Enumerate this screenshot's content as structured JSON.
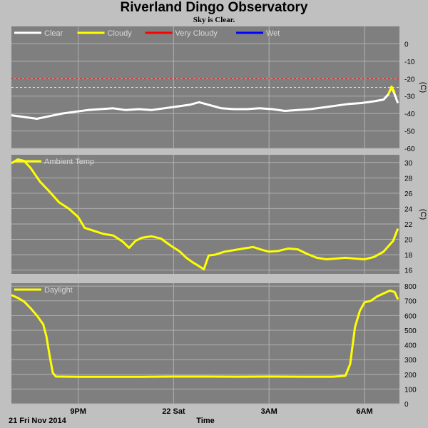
{
  "header": {
    "title": "Riverland Dingo Observatory",
    "subtitle": "Sky is Clear."
  },
  "footer": {
    "date_label": "21 Fri Nov 2014",
    "xlabel": "Time"
  },
  "x_ticks": [
    {
      "label": "9PM",
      "t": 21
    },
    {
      "label": "22 Sat",
      "t": 24
    },
    {
      "label": "3AM",
      "t": 27
    },
    {
      "label": "6AM",
      "t": 30
    }
  ],
  "colors": {
    "plot_bg": "#7f7f7f",
    "page_bg": "#c0c0c0",
    "grid": "#b0b0b0",
    "clear": "#ffffff",
    "cloudy": "#ffff00",
    "very_cloudy": "#ff0000",
    "wet": "#0000ff"
  },
  "chart_data": [
    {
      "type": "line",
      "panel": "sky",
      "unit": "(C)",
      "ylim": [
        -60,
        10
      ],
      "yticks": [
        0,
        -10,
        -20,
        -30,
        -40,
        -50,
        -60
      ],
      "thresholds": [
        {
          "name": "Very Cloudy",
          "value": -20,
          "color": "#ff0000"
        },
        {
          "name": "Cloudy",
          "value": -25,
          "color": "#ffff00"
        }
      ],
      "legend": [
        {
          "label": "Clear",
          "color": "#ffffff"
        },
        {
          "label": "Cloudy",
          "color": "#ffff00"
        },
        {
          "label": "Very Cloudy",
          "color": "#ff0000"
        },
        {
          "label": "Wet",
          "color": "#0000ff"
        }
      ],
      "series": [
        {
          "color": "#ffffff",
          "points": [
            [
              18.9,
              -41
            ],
            [
              19.3,
              -42
            ],
            [
              19.7,
              -43
            ],
            [
              20.1,
              -41.5
            ],
            [
              20.5,
              -40
            ],
            [
              20.9,
              -39
            ],
            [
              21.3,
              -38
            ],
            [
              21.7,
              -37.5
            ],
            [
              22.1,
              -37
            ],
            [
              22.5,
              -38
            ],
            [
              22.9,
              -37.5
            ],
            [
              23.3,
              -38
            ],
            [
              23.7,
              -37
            ],
            [
              24.1,
              -36
            ],
            [
              24.5,
              -35
            ],
            [
              24.8,
              -33.5
            ],
            [
              25.1,
              -35
            ],
            [
              25.5,
              -37
            ],
            [
              25.9,
              -37.5
            ],
            [
              26.3,
              -37.5
            ],
            [
              26.7,
              -37
            ],
            [
              27.1,
              -37.5
            ],
            [
              27.5,
              -38.5
            ],
            [
              27.9,
              -38
            ],
            [
              28.3,
              -37.5
            ],
            [
              28.7,
              -36.5
            ],
            [
              29.1,
              -35.5
            ],
            [
              29.5,
              -34.5
            ],
            [
              29.9,
              -34
            ],
            [
              30.3,
              -33
            ],
            [
              30.6,
              -32
            ],
            [
              30.75,
              -29
            ],
            [
              30.85,
              -25
            ],
            [
              30.95,
              -29
            ],
            [
              31.05,
              -34
            ]
          ]
        },
        {
          "color": "#ffff00",
          "points": [
            [
              30.75,
              -29
            ],
            [
              30.85,
              -24.5
            ],
            [
              30.95,
              -28
            ]
          ]
        }
      ]
    },
    {
      "type": "line",
      "panel": "ambient",
      "unit": "(C)",
      "ylim": [
        15.5,
        31
      ],
      "yticks": [
        30,
        28,
        26,
        24,
        22,
        20,
        18,
        16
      ],
      "legend": [
        {
          "label": "Ambient Temp",
          "color": "#ffff00"
        }
      ],
      "series": [
        {
          "color": "#ffff00",
          "points": [
            [
              18.9,
              29.9
            ],
            [
              19.1,
              30.4
            ],
            [
              19.3,
              30.2
            ],
            [
              19.5,
              29.3
            ],
            [
              19.8,
              27.5
            ],
            [
              20.1,
              26.2
            ],
            [
              20.4,
              24.8
            ],
            [
              20.7,
              24.0
            ],
            [
              21.0,
              22.9
            ],
            [
              21.2,
              21.5
            ],
            [
              21.5,
              21.1
            ],
            [
              21.8,
              20.7
            ],
            [
              22.1,
              20.5
            ],
            [
              22.4,
              19.7
            ],
            [
              22.6,
              18.9
            ],
            [
              22.8,
              19.8
            ],
            [
              23.0,
              20.2
            ],
            [
              23.3,
              20.4
            ],
            [
              23.6,
              20.1
            ],
            [
              23.9,
              19.2
            ],
            [
              24.2,
              18.4
            ],
            [
              24.4,
              17.6
            ],
            [
              24.6,
              17.0
            ],
            [
              24.8,
              16.5
            ],
            [
              24.95,
              16.1
            ],
            [
              25.1,
              17.9
            ],
            [
              25.3,
              18.0
            ],
            [
              25.6,
              18.4
            ],
            [
              25.9,
              18.6
            ],
            [
              26.2,
              18.8
            ],
            [
              26.5,
              19.0
            ],
            [
              26.8,
              18.6
            ],
            [
              27.0,
              18.4
            ],
            [
              27.3,
              18.5
            ],
            [
              27.6,
              18.8
            ],
            [
              27.9,
              18.7
            ],
            [
              28.2,
              18.1
            ],
            [
              28.5,
              17.6
            ],
            [
              28.8,
              17.4
            ],
            [
              29.1,
              17.5
            ],
            [
              29.4,
              17.6
            ],
            [
              29.7,
              17.5
            ],
            [
              30.0,
              17.4
            ],
            [
              30.3,
              17.7
            ],
            [
              30.6,
              18.4
            ],
            [
              30.9,
              19.8
            ],
            [
              31.05,
              21.4
            ]
          ]
        }
      ]
    },
    {
      "type": "line",
      "panel": "daylight",
      "unit": "",
      "ylim": [
        0,
        820
      ],
      "yticks": [
        800,
        700,
        600,
        500,
        400,
        300,
        200,
        100,
        0
      ],
      "legend": [
        {
          "label": "Daylight",
          "color": "#ffff00"
        }
      ],
      "series": [
        {
          "color": "#ffff00",
          "points": [
            [
              18.9,
              740
            ],
            [
              19.1,
              720
            ],
            [
              19.3,
              695
            ],
            [
              19.5,
              650
            ],
            [
              19.7,
              600
            ],
            [
              19.9,
              540
            ],
            [
              20.0,
              460
            ],
            [
              20.1,
              330
            ],
            [
              20.2,
              210
            ],
            [
              20.3,
              185
            ],
            [
              21.0,
              183
            ],
            [
              22.0,
              183
            ],
            [
              23.0,
              183
            ],
            [
              24.0,
              185
            ],
            [
              25.0,
              185
            ],
            [
              26.0,
              184
            ],
            [
              27.0,
              185
            ],
            [
              28.0,
              184
            ],
            [
              29.0,
              184
            ],
            [
              29.4,
              190
            ],
            [
              29.55,
              270
            ],
            [
              29.7,
              520
            ],
            [
              29.85,
              630
            ],
            [
              30.0,
              690
            ],
            [
              30.2,
              700
            ],
            [
              30.4,
              730
            ],
            [
              30.6,
              750
            ],
            [
              30.8,
              770
            ],
            [
              30.95,
              760
            ],
            [
              31.05,
              710
            ]
          ]
        }
      ]
    }
  ]
}
